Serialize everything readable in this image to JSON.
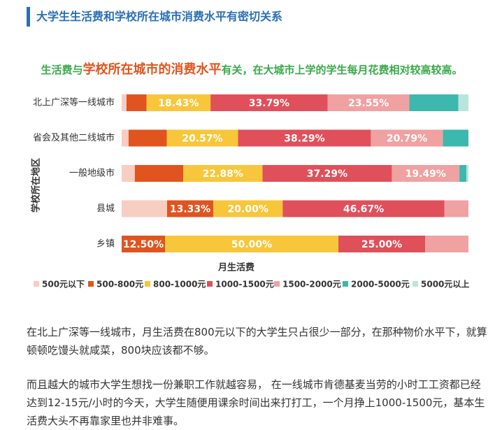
{
  "header": {
    "title": "大学生生活费和学校所在城市消费水平有密切关系"
  },
  "chart_data": {
    "type": "stacked-bar-horizontal",
    "title_parts": [
      "生活费与",
      "学校所在城市的消费水平",
      "有关，在大城市上学的学生每月花费相对较高较高。"
    ],
    "y_label": "学校所在地区",
    "x_label": "月生活费",
    "categories": [
      "北上广深等一线城市",
      "省会及其他二线城市",
      "一般地级市",
      "县城",
      "乡镇"
    ],
    "xlim": [
      0,
      100
    ],
    "series": [
      {
        "name": "500元以下",
        "color": "#f8cdc2",
        "values": [
          1.4,
          2.0,
          3.8,
          13.1,
          0
        ],
        "value_labels": [
          null,
          null,
          null,
          null,
          null
        ]
      },
      {
        "name": "500-800元",
        "color": "#e0541f",
        "values": [
          5.8,
          11.0,
          13.94,
          13.33,
          12.5
        ],
        "value_labels": [
          null,
          null,
          null,
          "13.33%",
          "12.50%"
        ]
      },
      {
        "name": "800-1000元",
        "color": "#f8c63a",
        "values": [
          18.43,
          20.57,
          22.88,
          20.0,
          50.0
        ],
        "value_labels": [
          "18.43%",
          "20.57%",
          "22.88%",
          "20.00%",
          "50.00%"
        ]
      },
      {
        "name": "1000-1500元",
        "color": "#e0505a",
        "values": [
          33.79,
          38.29,
          37.29,
          46.67,
          25.0
        ],
        "value_labels": [
          "33.79%",
          "38.29%",
          "37.29%",
          "46.67%",
          "25.00%"
        ]
      },
      {
        "name": "1500-2000元",
        "color": "#f0a1a1",
        "values": [
          23.55,
          20.79,
          19.49,
          6.9,
          12.5
        ],
        "value_labels": [
          "23.55%",
          "20.79%",
          "19.49%",
          null,
          null
        ]
      },
      {
        "name": "2000-5000元",
        "color": "#3cb8ae",
        "values": [
          14.1,
          7.35,
          2.0,
          0,
          0
        ],
        "value_labels": [
          null,
          null,
          null,
          null,
          null
        ]
      },
      {
        "name": "5000元以上",
        "color": "#b9e5dc",
        "values": [
          2.93,
          0,
          0.6,
          0,
          0
        ],
        "value_labels": [
          null,
          null,
          null,
          null,
          null
        ]
      }
    ]
  },
  "paragraphs": [
    "在北上广深等一线城市，月生活费在800元以下的大学生只占很少一部分，在那种物价水平下，就算顿顿吃馒头就咸菜，800块应该都不够。",
    "而且越大的城市大学生想找一份兼职工作就越容易， 在一线城市肯德基麦当劳的小时工工资都已经达到12-15元/小时的今天，大学生随便用课余时间出来打打工，一个月挣上1000-1500元，基本生活费大头不再靠家里也并非难事。"
  ]
}
